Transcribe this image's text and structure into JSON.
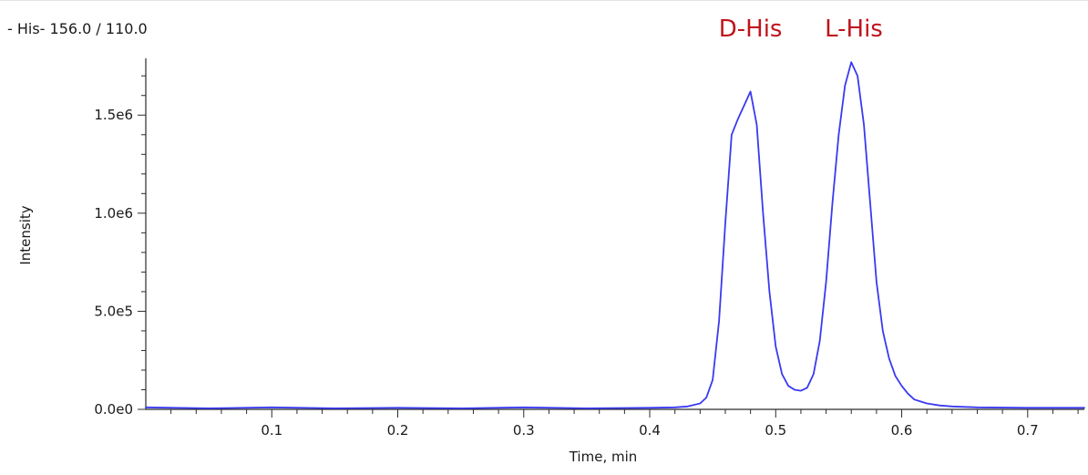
{
  "chart_data": {
    "type": "line",
    "title": "- His- 156.0 / 110.0",
    "xlabel": "Time, min",
    "ylabel": "Intensity",
    "xlim": [
      0.0,
      0.745
    ],
    "ylim": [
      0,
      1780000
    ],
    "x_ticks": [
      0.1,
      0.2,
      0.3,
      0.4,
      0.5,
      0.6,
      0.7
    ],
    "x_tick_labels": [
      "0.1",
      "0.2",
      "0.3",
      "0.4",
      "0.5",
      "0.6",
      "0.7"
    ],
    "y_ticks": [
      0,
      500000,
      1000000,
      1500000
    ],
    "y_tick_labels": [
      "0.0e0",
      "5.0e5",
      "1.0e6",
      "1.5e6"
    ],
    "grid": false,
    "annotations": [
      {
        "text": "D-His",
        "x": 0.48,
        "color": "#c0141c"
      },
      {
        "text": "L-His",
        "x": 0.562,
        "color": "#c0141c"
      }
    ],
    "series": [
      {
        "color": "#3a3af0",
        "x": [
          0.0,
          0.05,
          0.1,
          0.15,
          0.2,
          0.25,
          0.3,
          0.35,
          0.4,
          0.42,
          0.43,
          0.44,
          0.445,
          0.45,
          0.455,
          0.46,
          0.465,
          0.47,
          0.475,
          0.48,
          0.485,
          0.49,
          0.495,
          0.5,
          0.505,
          0.51,
          0.515,
          0.52,
          0.525,
          0.53,
          0.535,
          0.54,
          0.545,
          0.55,
          0.555,
          0.56,
          0.565,
          0.57,
          0.575,
          0.58,
          0.585,
          0.59,
          0.595,
          0.6,
          0.605,
          0.61,
          0.615,
          0.62,
          0.63,
          0.64,
          0.66,
          0.7,
          0.745
        ],
        "y": [
          10000,
          5000,
          10000,
          5000,
          8000,
          5000,
          10000,
          5000,
          8000,
          10000,
          15000,
          30000,
          60000,
          150000,
          450000,
          950000,
          1400000,
          1480000,
          1550000,
          1620000,
          1450000,
          1000000,
          600000,
          320000,
          180000,
          120000,
          100000,
          95000,
          110000,
          180000,
          350000,
          650000,
          1050000,
          1400000,
          1650000,
          1770000,
          1700000,
          1450000,
          1050000,
          650000,
          400000,
          260000,
          170000,
          120000,
          80000,
          50000,
          40000,
          30000,
          20000,
          15000,
          10000,
          8000,
          8000
        ]
      }
    ]
  }
}
